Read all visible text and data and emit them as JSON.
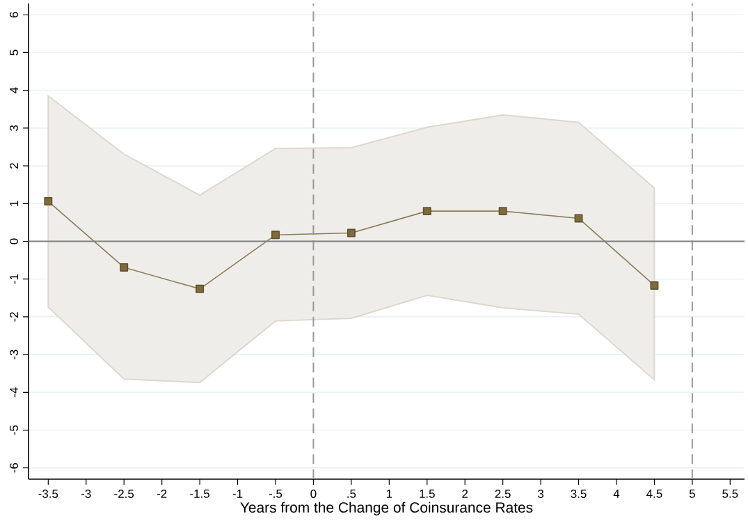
{
  "chart_data": {
    "type": "line",
    "xlabel": "Years from the Change of Coinsurance Rates",
    "x": [
      -3.5,
      -2.5,
      -1.5,
      -0.5,
      0.5,
      1.5,
      2.5,
      3.5,
      4.5
    ],
    "series": [
      {
        "color": "#8b7d5a",
        "values": [
          1.06,
          -0.69,
          -1.26,
          0.17,
          0.22,
          0.8,
          0.8,
          0.61,
          -1.17
        ],
        "lower": [
          -1.74,
          -3.65,
          -3.74,
          -2.11,
          -2.04,
          -1.43,
          -1.76,
          -1.93,
          -3.67
        ],
        "upper": [
          3.85,
          2.31,
          1.22,
          2.46,
          2.48,
          3.02,
          3.35,
          3.15,
          1.41
        ]
      }
    ],
    "xlim": [
      -3.76,
      5.69
    ],
    "ylim": [
      -6.3,
      6.3
    ],
    "xticks": [
      -3.5,
      -3,
      -2.5,
      -2,
      -1.5,
      -1,
      {
        "value": -0.5,
        "label": "-.5"
      },
      0,
      {
        "value": 0.5,
        "label": ".5"
      },
      1,
      1.5,
      2,
      2.5,
      3,
      3.5,
      4,
      4.5,
      5,
      5.5
    ],
    "yticks": [
      -6,
      -5,
      -4,
      -3,
      -2,
      -1,
      0,
      1,
      2,
      3,
      4,
      5,
      6
    ],
    "ref_lines": [
      {
        "axis": "x",
        "value": 0,
        "color": "#999999",
        "line_style": "dashed"
      },
      {
        "axis": "x",
        "value": 5,
        "color": "#999999",
        "line_style": "dashed"
      },
      {
        "axis": "y",
        "value": 0,
        "color": "#7f7f7f",
        "line_style": "solid"
      }
    ],
    "grid": "y",
    "marker": "square",
    "line_style": "solid"
  }
}
